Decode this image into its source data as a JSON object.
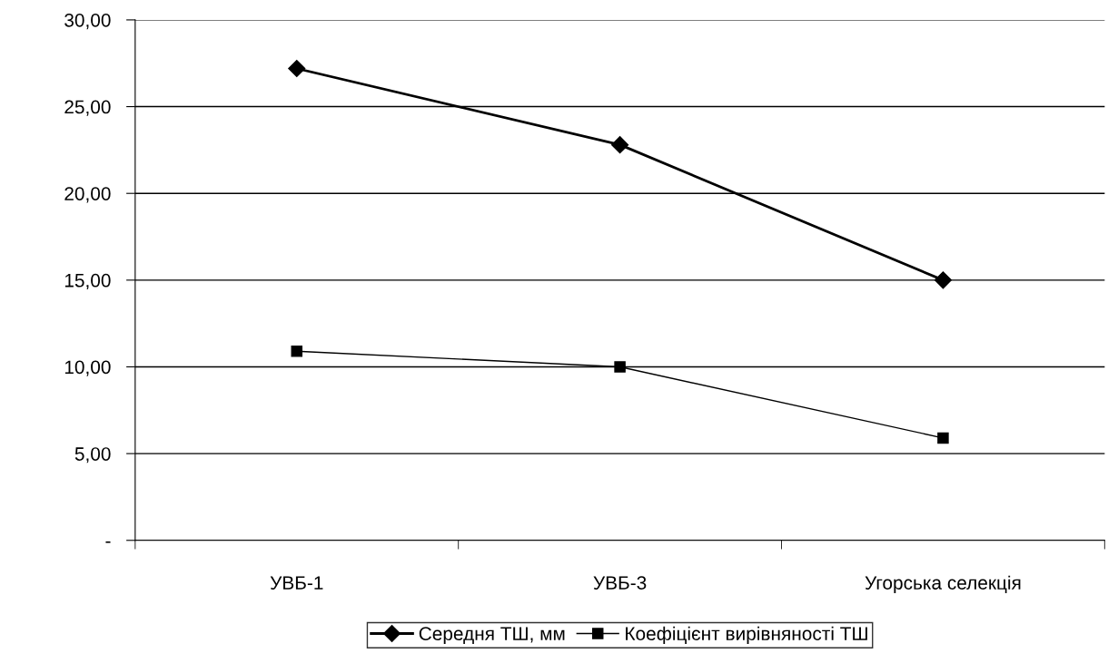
{
  "chart_data": {
    "type": "line",
    "categories": [
      "УВБ-1",
      "УВБ-3",
      "Угорська селекція"
    ],
    "series": [
      {
        "name": "Середня ТШ, мм",
        "color": "#000000",
        "values": [
          27.2,
          22.8,
          15.0
        ],
        "marker": "diamond"
      },
      {
        "name": "Коефіцієнт вирівняності ТШ",
        "color": "#000000",
        "values": [
          10.9,
          10.0,
          5.9
        ],
        "marker": "square"
      }
    ],
    "ylim": [
      0,
      30
    ],
    "yticks": [
      {
        "value": 0,
        "label": "-"
      },
      {
        "value": 5,
        "label": "5,00"
      },
      {
        "value": 10,
        "label": "10,00"
      },
      {
        "value": 15,
        "label": "15,00"
      },
      {
        "value": 20,
        "label": "20,00"
      },
      {
        "value": 25,
        "label": "25,00"
      },
      {
        "value": 30,
        "label": "30,00"
      }
    ],
    "grid": "y",
    "legend": "bottom",
    "line_style": "solid"
  }
}
